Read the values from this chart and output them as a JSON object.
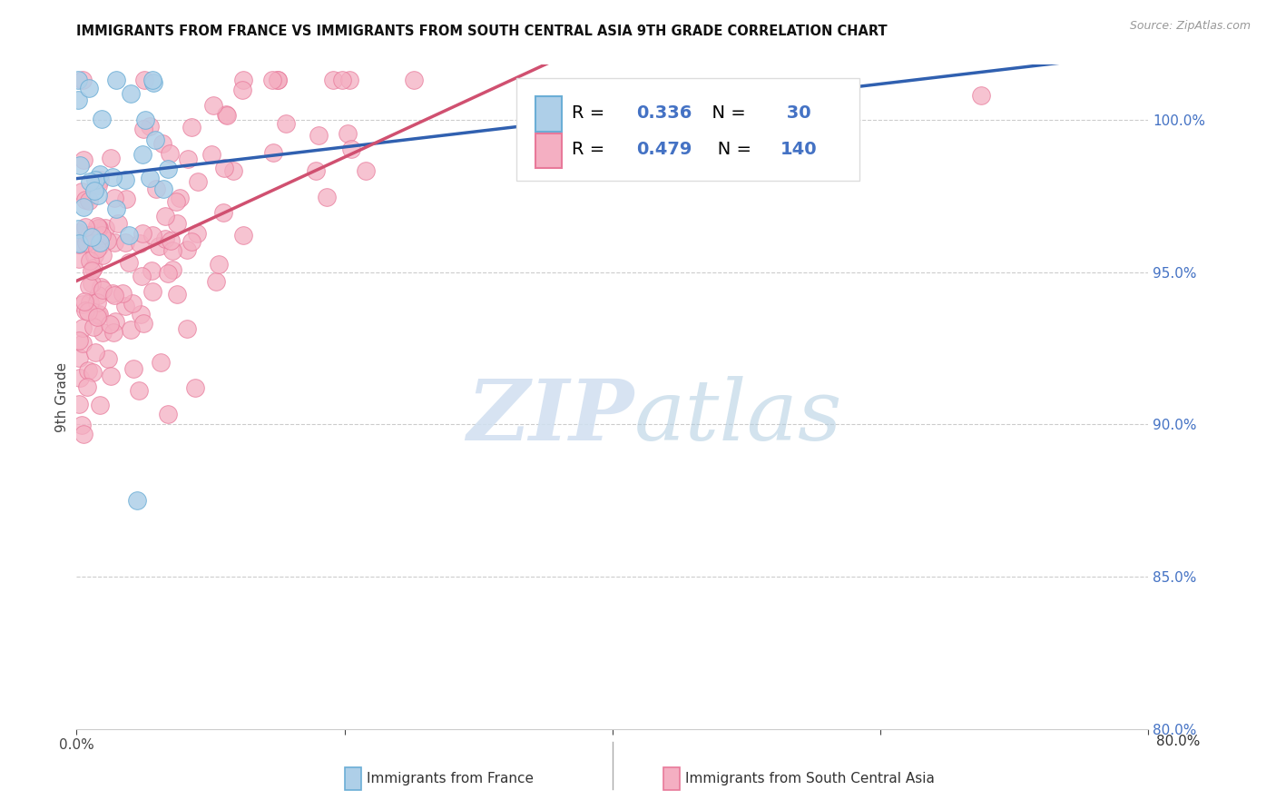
{
  "title": "IMMIGRANTS FROM FRANCE VS IMMIGRANTS FROM SOUTH CENTRAL ASIA 9TH GRADE CORRELATION CHART",
  "source": "Source: ZipAtlas.com",
  "ylabel": "9th Grade",
  "france_color": "#6baed6",
  "france_color_fill": "#aecfe8",
  "sca_color": "#e8799a",
  "sca_color_fill": "#f4afc2",
  "france_line_color": "#3060b0",
  "sca_line_color": "#d05070",
  "france_R": 0.336,
  "france_N": 30,
  "sca_R": 0.479,
  "sca_N": 140,
  "legend_label_france": "Immigrants from France",
  "legend_label_sca": "Immigrants from South Central Asia",
  "xlim": [
    0.0,
    80.0
  ],
  "ylim": [
    80.0,
    101.5
  ],
  "ytick_grid": [
    85.0,
    90.0,
    95.0,
    100.0
  ],
  "right_ytick_labels": [
    "100.0%",
    "95.0%",
    "90.0%",
    "85.0%",
    "80.0%"
  ],
  "right_ytick_vals": [
    100.0,
    95.0,
    90.0,
    85.0,
    80.0
  ],
  "france_seed": 7,
  "sca_seed": 13,
  "accent_color": "#4472c4",
  "watermark_zip_color": "#d0dff0",
  "watermark_atlas_color": "#b0cce0"
}
